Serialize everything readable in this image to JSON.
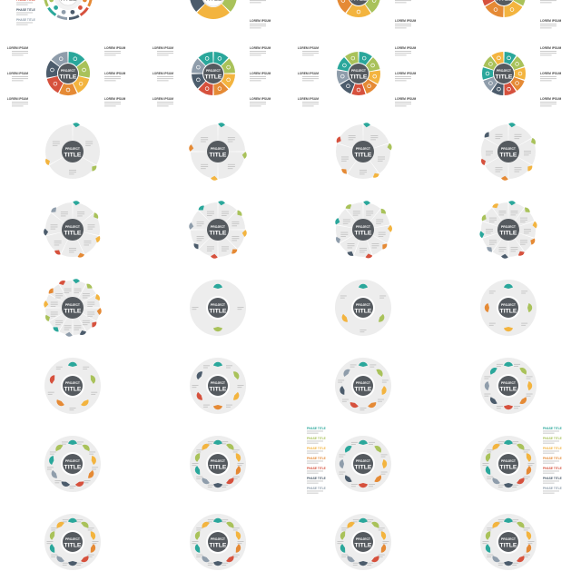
{
  "center": {
    "line1": "PROJECT",
    "line2": "TITLE"
  },
  "lorem_label": "LOREM IPSUM",
  "phase_label": "PHASE TITLE",
  "colors": [
    "#2aa79b",
    "#a9c25a",
    "#f3b43f",
    "#e58a35",
    "#d6513d",
    "#4c5c6c",
    "#8f9dab",
    "#d9d9d9"
  ],
  "grid": {
    "columns": 4,
    "rows": 8,
    "variants": [
      {
        "style": "ring-icons",
        "segments": 12,
        "labels": "phase-left"
      },
      {
        "style": "thick-ring",
        "segments": 4,
        "labels": "lorem-right"
      },
      {
        "style": "ring-gaps",
        "segments": 5,
        "labels": "lorem-right"
      },
      {
        "style": "ring-gaps",
        "segments": 6,
        "labels": "lorem-right"
      },
      {
        "style": "ring-gaps",
        "segments": 7,
        "labels": "lorem-both"
      },
      {
        "style": "ring-gaps",
        "segments": 8,
        "labels": "lorem-both"
      },
      {
        "style": "ring-gaps",
        "segments": 9,
        "labels": "lorem-both"
      },
      {
        "style": "ring-gaps",
        "segments": 10,
        "labels": "lorem-right"
      },
      {
        "style": "pie-tabs",
        "segments": 3
      },
      {
        "style": "pie-tabs",
        "segments": 4
      },
      {
        "style": "pie-tabs",
        "segments": 5
      },
      {
        "style": "pie-tabs",
        "segments": 6
      },
      {
        "style": "pie-tabs",
        "segments": 7
      },
      {
        "style": "pie-tabs",
        "segments": 8
      },
      {
        "style": "pie-tabs",
        "segments": 9
      },
      {
        "style": "pie-tabs",
        "segments": 10
      },
      {
        "style": "pie-tabs",
        "segments": 12
      },
      {
        "style": "halo-petals",
        "segments": 2
      },
      {
        "style": "halo-petals",
        "segments": 3
      },
      {
        "style": "halo-petals",
        "segments": 4
      },
      {
        "style": "halo-petals",
        "segments": 5
      },
      {
        "style": "halo-petals",
        "segments": 6
      },
      {
        "style": "halo-petals",
        "segments": 7
      },
      {
        "style": "halo-petals",
        "segments": 8
      },
      {
        "style": "halo-petals",
        "segments": 9
      },
      {
        "style": "halo-petals",
        "segments": 10
      },
      {
        "style": "halo-petals",
        "segments": 8,
        "labels": "phase-left"
      },
      {
        "style": "halo-petals",
        "segments": 10,
        "labels": "phase-right"
      },
      {
        "style": "halo-petals",
        "segments": 10,
        "labels": "partial"
      },
      {
        "style": "halo-petals",
        "segments": 10,
        "labels": "partial"
      },
      {
        "style": "halo-petals",
        "segments": 10,
        "labels": "partial"
      },
      {
        "style": "halo-petals",
        "segments": 10,
        "labels": "partial"
      }
    ]
  }
}
